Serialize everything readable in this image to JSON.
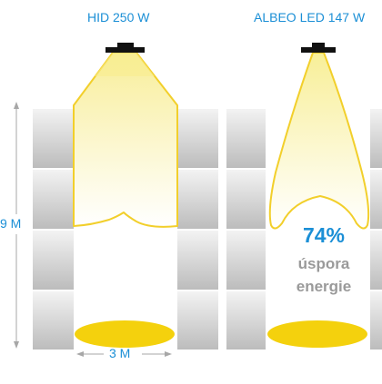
{
  "colors": {
    "label": "#1b8fd6",
    "savings": "#1b8fd6",
    "savings_text": "#9a9a9a",
    "dimension_line": "#a7a7a7",
    "light_beam": "#f6d22a",
    "floor_spot": "#f4d10d",
    "fixture": "#111111"
  },
  "comparison": {
    "hid": {
      "label": "HID  250 W"
    },
    "led": {
      "label": "ALBEO LED 147 W"
    }
  },
  "dimensions": {
    "height": "9 M",
    "width": "3 M"
  },
  "savings": {
    "percent": "74%",
    "line1": "úspora",
    "line2": "energie"
  },
  "icons": [
    "light-fixture-icon",
    "light-fixture-icon"
  ]
}
